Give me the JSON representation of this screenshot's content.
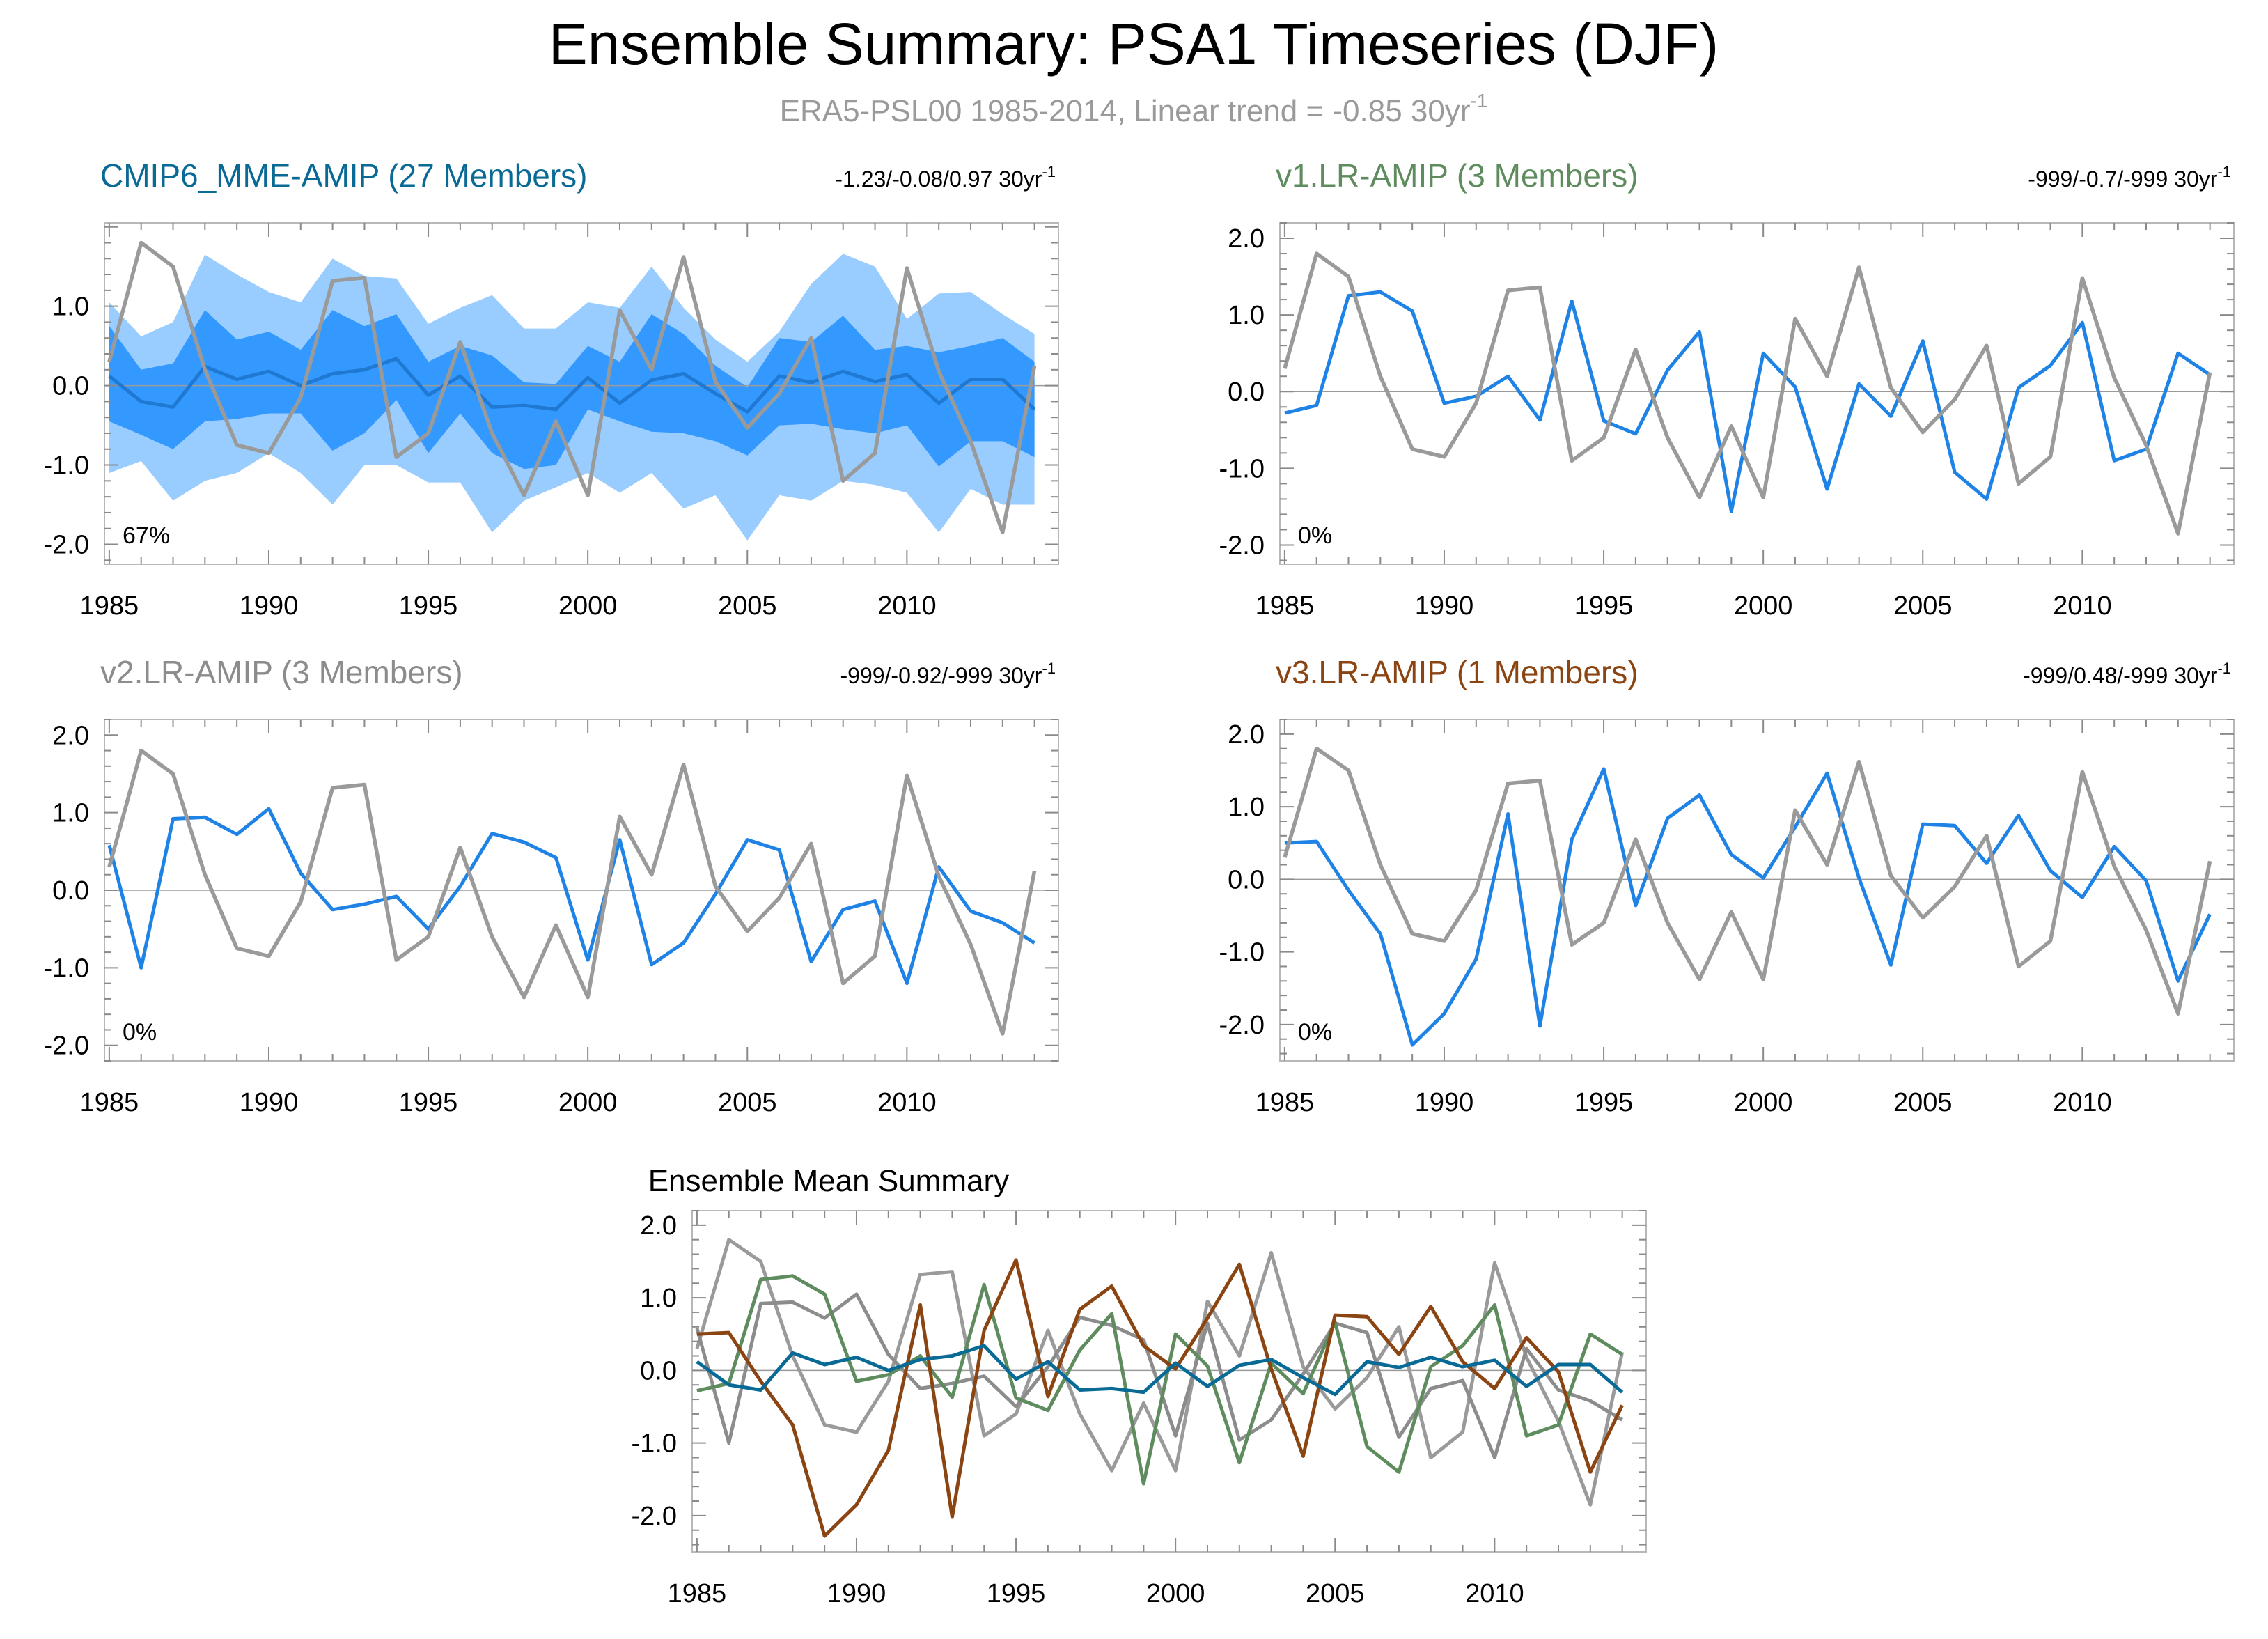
{
  "figure": {
    "title": "Ensemble Summary: PSA1 Timeseries (DJF)",
    "subtitle": "ERA5-PSL00 1985-2014, Linear trend = -0.85 30yr",
    "subtitle_sup": "-1",
    "colors": {
      "obs": "#9a9a9a",
      "model": "#1f83e6",
      "band_inner": "#3399ff",
      "band_outer": "#99ccff",
      "mme_mean": "#0a6a96",
      "v1": "#5f8c5f",
      "v2": "#8c8c8c",
      "v3": "#8b4513"
    }
  },
  "chart_data": [
    {
      "id": "mme",
      "type": "area",
      "title": "CMIP6_MME-AMIP (27 Members)",
      "title_color": "#0a6a96",
      "trend_label": "-1.23/-0.08/0.97 30yr",
      "trend_sup": "-1",
      "pct_label": "67%",
      "x": [
        1985,
        1986,
        1987,
        1988,
        1989,
        1990,
        1991,
        1992,
        1993,
        1994,
        1995,
        1996,
        1997,
        1998,
        1999,
        2000,
        2001,
        2002,
        2003,
        2004,
        2005,
        2006,
        2007,
        2008,
        2009,
        2010,
        2011,
        2012,
        2013,
        2014
      ],
      "xticks": [
        1985,
        1990,
        1995,
        2000,
        2005,
        2010
      ],
      "yticks": [
        -2.0,
        -1.0,
        0.0,
        1.0
      ],
      "ytick_labels": [
        "-2.0",
        "-1.0",
        "0.0",
        "1.0"
      ],
      "ylim": [
        -2.25,
        2.05
      ],
      "series": [
        {
          "name": "ensemble_mean",
          "values": [
            0.12,
            -0.2,
            -0.27,
            0.24,
            0.08,
            0.18,
            0.0,
            0.15,
            0.2,
            0.34,
            -0.12,
            0.12,
            -0.27,
            -0.25,
            -0.3,
            0.1,
            -0.22,
            0.07,
            0.15,
            -0.1,
            -0.33,
            0.12,
            0.04,
            0.18,
            0.05,
            0.14,
            -0.22,
            0.08,
            0.08,
            -0.3
          ]
        },
        {
          "name": "band_outer_upper",
          "values": [
            1.05,
            0.62,
            0.8,
            1.65,
            1.4,
            1.18,
            1.05,
            1.6,
            1.38,
            1.35,
            0.78,
            0.98,
            1.14,
            0.72,
            0.72,
            1.05,
            0.98,
            1.5,
            0.98,
            0.58,
            0.3,
            0.68,
            1.28,
            1.66,
            1.5,
            0.84,
            1.16,
            1.18,
            0.9,
            0.65
          ]
        },
        {
          "name": "band_inner_upper",
          "values": [
            0.75,
            0.2,
            0.28,
            0.95,
            0.58,
            0.68,
            0.45,
            0.95,
            0.75,
            0.9,
            0.3,
            0.5,
            0.38,
            0.04,
            0.02,
            0.5,
            0.3,
            0.9,
            0.65,
            0.25,
            -0.02,
            0.6,
            0.55,
            0.88,
            0.45,
            0.5,
            0.42,
            0.5,
            0.6,
            0.3
          ]
        },
        {
          "name": "band_inner_lower",
          "values": [
            -0.45,
            -0.62,
            -0.8,
            -0.45,
            -0.42,
            -0.35,
            -0.35,
            -0.82,
            -0.6,
            -0.18,
            -0.85,
            -0.35,
            -0.85,
            -1.05,
            -1.0,
            -0.3,
            -0.45,
            -0.58,
            -0.6,
            -0.7,
            -0.88,
            -0.5,
            -0.48,
            -0.55,
            -0.6,
            -0.5,
            -1.02,
            -0.7,
            -0.7,
            -0.9
          ]
        },
        {
          "name": "band_outer_lower",
          "values": [
            -1.1,
            -0.95,
            -1.45,
            -1.2,
            -1.1,
            -0.85,
            -1.1,
            -1.5,
            -1.0,
            -1.0,
            -1.22,
            -1.22,
            -1.85,
            -1.45,
            -1.28,
            -1.1,
            -1.35,
            -1.1,
            -1.55,
            -1.38,
            -1.95,
            -1.38,
            -1.45,
            -1.2,
            -1.25,
            -1.35,
            -1.85,
            -1.3,
            -1.5,
            -1.5
          ]
        },
        {
          "name": "ERA5",
          "values": [
            0.3,
            1.8,
            1.5,
            0.2,
            -0.75,
            -0.85,
            -0.15,
            1.32,
            1.36,
            -0.9,
            -0.6,
            0.55,
            -0.6,
            -1.38,
            -0.45,
            -1.38,
            0.95,
            0.2,
            1.62,
            0.05,
            -0.53,
            -0.1,
            0.6,
            -1.2,
            -0.85,
            1.48,
            0.18,
            -0.7,
            -1.85,
            0.25
          ]
        }
      ]
    },
    {
      "id": "v1",
      "type": "line",
      "title": "v1.LR-AMIP (3 Members)",
      "title_color": "#5f8c5f",
      "trend_label": "-999/-0.7/-999 30yr",
      "trend_sup": "-1",
      "pct_label": "0%",
      "x": [
        1985,
        1986,
        1987,
        1988,
        1989,
        1990,
        1991,
        1992,
        1993,
        1994,
        1995,
        1996,
        1997,
        1998,
        1999,
        2000,
        2001,
        2002,
        2003,
        2004,
        2005,
        2006,
        2007,
        2008,
        2009,
        2010,
        2011,
        2012,
        2013,
        2014
      ],
      "xticks": [
        1985,
        1990,
        1995,
        2000,
        2005,
        2010
      ],
      "yticks": [
        -2.0,
        -1.0,
        0.0,
        1.0,
        2.0
      ],
      "ytick_labels": [
        "-2.0",
        "-1.0",
        "0.0",
        "1.0",
        "2.0"
      ],
      "ylim": [
        -2.25,
        2.2
      ],
      "series": [
        {
          "name": "v1.LR-AMIP",
          "values": [
            -0.28,
            -0.18,
            1.25,
            1.3,
            1.05,
            -0.15,
            -0.06,
            0.2,
            -0.37,
            1.18,
            -0.38,
            -0.55,
            0.28,
            0.78,
            -1.56,
            0.5,
            0.06,
            -1.27,
            0.1,
            -0.32,
            0.66,
            -1.05,
            -1.4,
            0.05,
            0.34,
            0.9,
            -0.9,
            -0.75,
            0.5,
            0.22
          ]
        },
        {
          "name": "ERA5",
          "values": [
            0.3,
            1.8,
            1.5,
            0.2,
            -0.75,
            -0.85,
            -0.15,
            1.32,
            1.36,
            -0.9,
            -0.6,
            0.55,
            -0.6,
            -1.38,
            -0.45,
            -1.38,
            0.95,
            0.2,
            1.62,
            0.05,
            -0.53,
            -0.1,
            0.6,
            -1.2,
            -0.85,
            1.48,
            0.18,
            -0.7,
            -1.85,
            0.25
          ]
        }
      ]
    },
    {
      "id": "v2",
      "type": "line",
      "title": "v2.LR-AMIP (3 Members)",
      "title_color": "#8c8c8c",
      "trend_label": "-999/-0.92/-999 30yr",
      "trend_sup": "-1",
      "pct_label": "0%",
      "x": [
        1985,
        1986,
        1987,
        1988,
        1989,
        1990,
        1991,
        1992,
        1993,
        1994,
        1995,
        1996,
        1997,
        1998,
        1999,
        2000,
        2001,
        2002,
        2003,
        2004,
        2005,
        2006,
        2007,
        2008,
        2009,
        2010,
        2011,
        2012,
        2013,
        2014
      ],
      "xticks": [
        1985,
        1990,
        1995,
        2000,
        2005,
        2010
      ],
      "yticks": [
        -2.0,
        -1.0,
        0.0,
        1.0,
        2.0
      ],
      "ytick_labels": [
        "-2.0",
        "-1.0",
        "0.0",
        "1.0",
        "2.0"
      ],
      "ylim": [
        -2.2,
        2.2
      ],
      "series": [
        {
          "name": "v2.LR-AMIP",
          "values": [
            0.58,
            -1.0,
            0.92,
            0.94,
            0.72,
            1.05,
            0.22,
            -0.25,
            -0.18,
            -0.08,
            -0.5,
            0.05,
            0.73,
            0.62,
            0.42,
            -0.9,
            0.65,
            -0.96,
            -0.68,
            -0.05,
            0.65,
            0.52,
            -0.92,
            -0.25,
            -0.14,
            -1.2,
            0.3,
            -0.27,
            -0.42,
            -0.68
          ]
        },
        {
          "name": "ERA5",
          "values": [
            0.3,
            1.8,
            1.5,
            0.2,
            -0.75,
            -0.85,
            -0.15,
            1.32,
            1.36,
            -0.9,
            -0.6,
            0.55,
            -0.6,
            -1.38,
            -0.45,
            -1.38,
            0.95,
            0.2,
            1.62,
            0.05,
            -0.53,
            -0.1,
            0.6,
            -1.2,
            -0.85,
            1.48,
            0.18,
            -0.7,
            -1.85,
            0.25
          ]
        }
      ]
    },
    {
      "id": "v3",
      "type": "line",
      "title": "v3.LR-AMIP (1 Members)",
      "title_color": "#8b4513",
      "trend_label": "-999/0.48/-999 30yr",
      "trend_sup": "-1",
      "pct_label": "0%",
      "x": [
        1985,
        1986,
        1987,
        1988,
        1989,
        1990,
        1991,
        1992,
        1993,
        1994,
        1995,
        1996,
        1997,
        1998,
        1999,
        2000,
        2001,
        2002,
        2003,
        2004,
        2005,
        2006,
        2007,
        2008,
        2009,
        2010,
        2011,
        2012,
        2013,
        2014
      ],
      "xticks": [
        1985,
        1990,
        1995,
        2000,
        2005,
        2010
      ],
      "yticks": [
        -2.0,
        -1.0,
        0.0,
        1.0,
        2.0
      ],
      "ytick_labels": [
        "-2.0",
        "-1.0",
        "0.0",
        "1.0",
        "2.0"
      ],
      "ylim": [
        -2.5,
        2.2
      ],
      "series": [
        {
          "name": "v3.LR-AMIP",
          "values": [
            0.5,
            0.52,
            -0.15,
            -0.75,
            -2.28,
            -1.85,
            -1.1,
            0.9,
            -2.02,
            0.55,
            1.52,
            -0.36,
            0.84,
            1.16,
            0.34,
            0.02,
            0.72,
            1.46,
            0.02,
            -1.18,
            0.76,
            0.74,
            0.22,
            0.88,
            0.12,
            -0.25,
            0.45,
            -0.02,
            -1.4,
            -0.48
          ]
        },
        {
          "name": "ERA5",
          "values": [
            0.3,
            1.8,
            1.5,
            0.2,
            -0.75,
            -0.85,
            -0.15,
            1.32,
            1.36,
            -0.9,
            -0.6,
            0.55,
            -0.6,
            -1.38,
            -0.45,
            -1.38,
            0.95,
            0.2,
            1.62,
            0.05,
            -0.53,
            -0.1,
            0.6,
            -1.2,
            -0.85,
            1.48,
            0.18,
            -0.7,
            -1.85,
            0.25
          ]
        }
      ]
    },
    {
      "id": "summary",
      "type": "line",
      "title": "Ensemble Mean Summary",
      "x": [
        1985,
        1986,
        1987,
        1988,
        1989,
        1990,
        1991,
        1992,
        1993,
        1994,
        1995,
        1996,
        1997,
        1998,
        1999,
        2000,
        2001,
        2002,
        2003,
        2004,
        2005,
        2006,
        2007,
        2008,
        2009,
        2010,
        2011,
        2012,
        2013,
        2014
      ],
      "xticks": [
        1985,
        1990,
        1995,
        2000,
        2005,
        2010
      ],
      "yticks": [
        -2.0,
        -1.0,
        0.0,
        1.0,
        2.0
      ],
      "ytick_labels": [
        "-2.0",
        "-1.0",
        "0.0",
        "1.0",
        "2.0"
      ],
      "ylim": [
        -2.5,
        2.2
      ],
      "series": [
        {
          "name": "ERA5",
          "values": [
            0.3,
            1.8,
            1.5,
            0.2,
            -0.75,
            -0.85,
            -0.15,
            1.32,
            1.36,
            -0.9,
            -0.6,
            0.55,
            -0.6,
            -1.38,
            -0.45,
            -1.38,
            0.95,
            0.2,
            1.62,
            0.05,
            -0.53,
            -0.1,
            0.6,
            -1.2,
            -0.85,
            1.48,
            0.18,
            -0.7,
            -1.85,
            0.25
          ]
        },
        {
          "name": "v2.LR-AMIP",
          "values": [
            0.58,
            -1.0,
            0.92,
            0.94,
            0.72,
            1.05,
            0.22,
            -0.25,
            -0.18,
            -0.08,
            -0.5,
            0.05,
            0.73,
            0.62,
            0.42,
            -0.9,
            0.65,
            -0.96,
            -0.68,
            -0.05,
            0.65,
            0.52,
            -0.92,
            -0.25,
            -0.14,
            -1.2,
            0.3,
            -0.27,
            -0.42,
            -0.68
          ]
        },
        {
          "name": "v1.LR-AMIP",
          "values": [
            -0.28,
            -0.18,
            1.25,
            1.3,
            1.05,
            -0.15,
            -0.06,
            0.2,
            -0.37,
            1.18,
            -0.38,
            -0.55,
            0.28,
            0.78,
            -1.56,
            0.5,
            0.06,
            -1.27,
            0.1,
            -0.32,
            0.66,
            -1.05,
            -1.4,
            0.05,
            0.34,
            0.9,
            -0.9,
            -0.75,
            0.5,
            0.22
          ]
        },
        {
          "name": "v3.LR-AMIP",
          "values": [
            0.5,
            0.52,
            -0.15,
            -0.75,
            -2.28,
            -1.85,
            -1.1,
            0.9,
            -2.02,
            0.55,
            1.52,
            -0.36,
            0.84,
            1.16,
            0.34,
            0.02,
            0.72,
            1.46,
            0.02,
            -1.18,
            0.76,
            0.74,
            0.22,
            0.88,
            0.12,
            -0.25,
            0.45,
            -0.02,
            -1.4,
            -0.48
          ]
        },
        {
          "name": "CMIP6_MME-AMIP",
          "values": [
            0.12,
            -0.2,
            -0.27,
            0.24,
            0.08,
            0.18,
            0.0,
            0.15,
            0.2,
            0.34,
            -0.12,
            0.12,
            -0.27,
            -0.25,
            -0.3,
            0.1,
            -0.22,
            0.07,
            0.15,
            -0.1,
            -0.33,
            0.12,
            0.04,
            0.18,
            0.05,
            0.14,
            -0.22,
            0.08,
            0.08,
            -0.3
          ]
        }
      ]
    }
  ]
}
